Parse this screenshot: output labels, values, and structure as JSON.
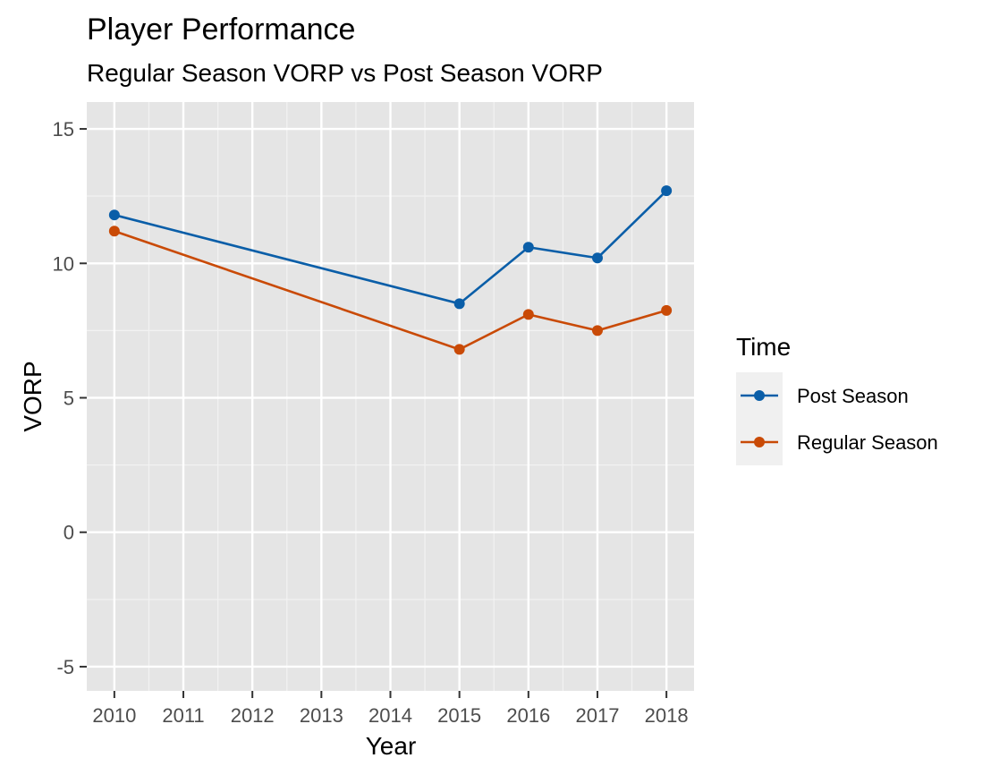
{
  "chart_data": {
    "type": "line",
    "title": "Player Performance",
    "subtitle": "Regular Season VORP vs Post Season VORP",
    "xlabel": "Year",
    "ylabel": "VORP",
    "x": [
      2010,
      2015,
      2016,
      2017,
      2018
    ],
    "x_ticks": [
      "2010",
      "2011",
      "2012",
      "2013",
      "2014",
      "2015",
      "2016",
      "2017",
      "2018"
    ],
    "y_ticks": [
      "-5",
      "0",
      "5",
      "10",
      "15"
    ],
    "xlim": [
      2009.6,
      2018.4
    ],
    "ylim": [
      -5.9,
      16
    ],
    "grid": true,
    "legend": {
      "title": "Time",
      "position": "right"
    },
    "series": [
      {
        "name": "Post Season",
        "color": "#0a5ea8",
        "values": [
          11.8,
          8.5,
          10.6,
          10.2,
          12.7
        ]
      },
      {
        "name": "Regular Season",
        "color": "#c94a06",
        "values": [
          11.2,
          6.8,
          8.1,
          7.5,
          8.25
        ]
      }
    ]
  }
}
